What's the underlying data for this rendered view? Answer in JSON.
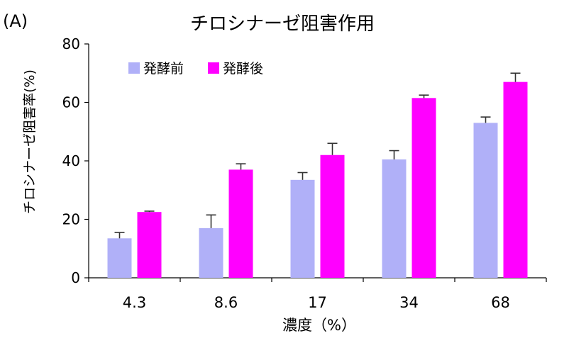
{
  "panel_label": "(A)",
  "chart_data": {
    "type": "bar",
    "title": "チロシナーゼ阻害作用",
    "xlabel": "濃度（%）",
    "ylabel": "チロシナーゼ阻害率(%)",
    "categories": [
      "4.3",
      "8.6",
      "17",
      "34",
      "68"
    ],
    "series": [
      {
        "name": "発酵前",
        "color": "#b0b0f8",
        "values": [
          13.5,
          17,
          33.5,
          40.5,
          53
        ],
        "errors": [
          2,
          4.5,
          2.5,
          3,
          2
        ]
      },
      {
        "name": "発酵後",
        "color": "#ff00ff",
        "values": [
          22.5,
          37,
          42,
          61.5,
          67
        ],
        "errors": [
          0.3,
          2,
          4,
          1,
          3
        ]
      }
    ],
    "yticks": [
      "0",
      "20",
      "40",
      "60",
      "80"
    ],
    "ylim": [
      0,
      80
    ],
    "grid": false,
    "legend": "top-left"
  }
}
